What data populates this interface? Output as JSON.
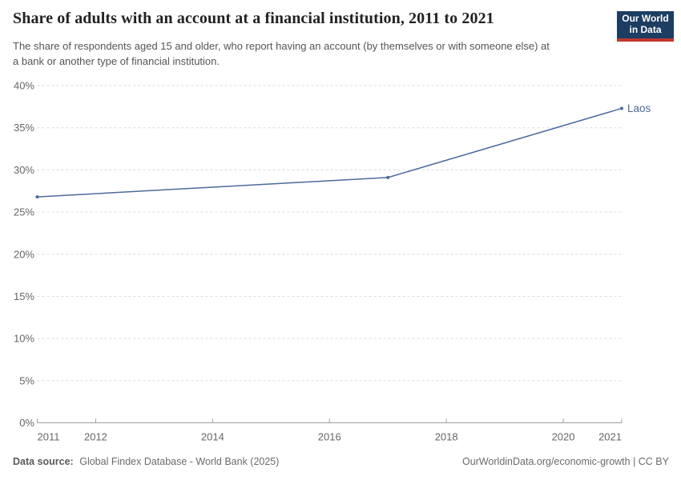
{
  "header": {
    "title": "Share of adults with an account at a financial institution, 2011 to 2021",
    "subtitle": "The share of respondents aged 15 and older, who report having an account (by themselves or with someone else) at a bank or another type of financial institution.",
    "logo": {
      "line1": "Our World",
      "line2": "in Data",
      "bg_color": "#1d3d63",
      "accent_color": "#c0372e"
    }
  },
  "chart_data": {
    "type": "line",
    "title": "Share of adults with an account at a financial institution, 2011 to 2021",
    "series": [
      {
        "name": "Laos",
        "x": [
          2011,
          2017,
          2021
        ],
        "values": [
          26.8,
          29.1,
          37.3
        ],
        "color": "#4c6a9c"
      }
    ],
    "entity_label": "Laos",
    "x_ticks": [
      2011,
      2012,
      2014,
      2016,
      2018,
      2020,
      2021
    ],
    "y_ticks": [
      0,
      5,
      10,
      15,
      20,
      25,
      30,
      35,
      40
    ],
    "y_tick_suffix": "%",
    "xlim": [
      2011,
      2021
    ],
    "ylim": [
      0,
      40
    ],
    "xlabel": "",
    "ylabel": "",
    "grid": "horizontal-dashed",
    "legend_position": "end-of-line-label",
    "colors": {
      "gridline": "#dcdcdc",
      "axis": "#9e9e9e",
      "tick_label": "#666666"
    }
  },
  "footer": {
    "source_label": "Data source:",
    "source_value": "Global Findex Database - World Bank (2025)",
    "link": "OurWorldinData.org/economic-growth | CC BY"
  }
}
